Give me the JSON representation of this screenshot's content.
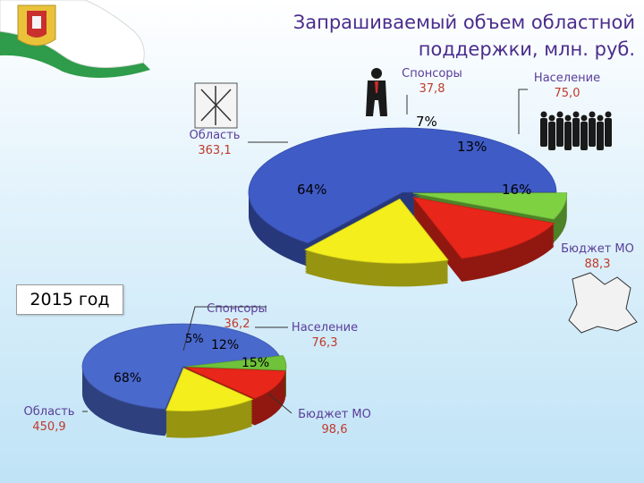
{
  "title": "Запрашиваемый объем областной поддержки, млн. руб.",
  "year_badge": "2015 год",
  "chart_data": [
    {
      "type": "pie",
      "title": "Запрашиваемый объем областной поддержки, млн. руб.",
      "slices": [
        {
          "name": "Область",
          "value": "363,1",
          "value_num": 363.1,
          "pct": "64%",
          "color": "#3f5bc6"
        },
        {
          "name": "Спонсоры",
          "value": "37,8",
          "value_num": 37.8,
          "pct": "7%",
          "color": "#7ed242"
        },
        {
          "name": "Население",
          "value": "75,0",
          "value_num": 75.0,
          "pct": "13%",
          "color": "#e8261a"
        },
        {
          "name": "Бюджет МО",
          "value": "88,3",
          "value_num": 88.3,
          "pct": "16%",
          "color": "#f3ee1c"
        }
      ]
    },
    {
      "type": "pie",
      "title": "2015 год",
      "slices": [
        {
          "name": "Область",
          "value": "450,9",
          "value_num": 450.9,
          "pct": "68%",
          "color": "#4a69cc"
        },
        {
          "name": "Спонсоры",
          "value": "36,2",
          "value_num": 36.2,
          "pct": "5%",
          "color": "#6fc23a"
        },
        {
          "name": "Население",
          "value": "76,3",
          "value_num": 76.3,
          "pct": "12%",
          "color": "#e8261a"
        },
        {
          "name": "Бюджет МО",
          "value": "98,6",
          "value_num": 98.6,
          "pct": "15%",
          "color": "#f3ee1c"
        }
      ]
    }
  ]
}
